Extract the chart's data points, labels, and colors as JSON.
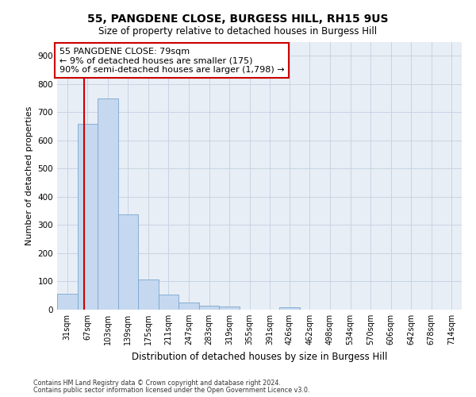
{
  "title": "55, PANGDENE CLOSE, BURGESS HILL, RH15 9US",
  "subtitle": "Size of property relative to detached houses in Burgess Hill",
  "xlabel": "Distribution of detached houses by size in Burgess Hill",
  "ylabel": "Number of detached properties",
  "bar_edges": [
    31,
    67,
    103,
    139,
    175,
    211,
    247,
    283,
    319,
    355,
    391,
    426,
    462,
    498,
    534,
    570,
    606,
    642,
    678,
    714,
    750
  ],
  "bar_heights": [
    55,
    660,
    750,
    338,
    108,
    53,
    26,
    15,
    12,
    0,
    0,
    8,
    0,
    0,
    0,
    0,
    0,
    0,
    0,
    0
  ],
  "bar_color": "#c5d8ef",
  "bar_edge_color": "#7ba7d0",
  "property_size": 79,
  "property_line_color": "#cc0000",
  "annotation_text": "55 PANGDENE CLOSE: 79sqm\n← 9% of detached houses are smaller (175)\n90% of semi-detached houses are larger (1,798) →",
  "annotation_box_facecolor": "#ffffff",
  "annotation_box_edgecolor": "#cc0000",
  "ylim": [
    0,
    950
  ],
  "yticks": [
    0,
    100,
    200,
    300,
    400,
    500,
    600,
    700,
    800,
    900
  ],
  "xlim_left": 31,
  "xlim_right": 750,
  "ax_facecolor": "#e8eef5",
  "background_color": "#ffffff",
  "grid_color": "#c8d4e4",
  "footer_line1": "Contains HM Land Registry data © Crown copyright and database right 2024.",
  "footer_line2": "Contains public sector information licensed under the Open Government Licence v3.0."
}
